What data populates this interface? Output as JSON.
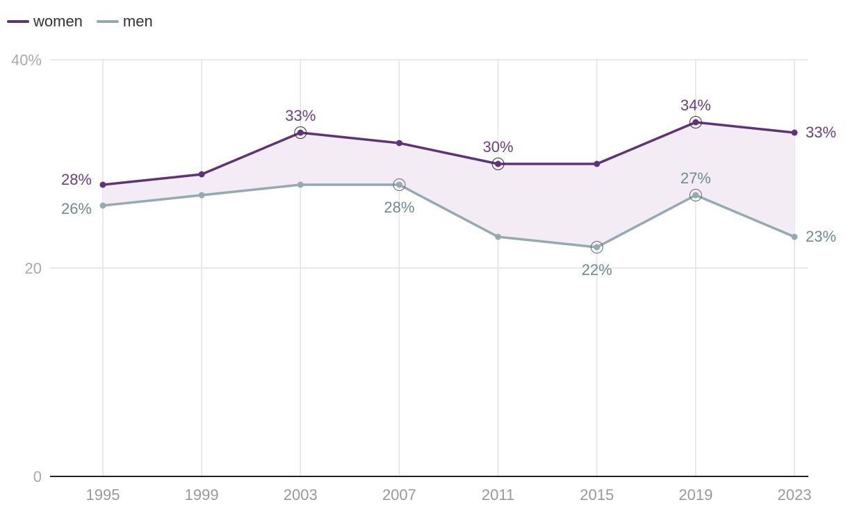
{
  "chart_data": {
    "type": "line",
    "x": [
      1995,
      1999,
      2003,
      2007,
      2011,
      2015,
      2019,
      2023
    ],
    "series": [
      {
        "name": "women",
        "color": "#5e3378",
        "values": [
          28,
          29,
          33,
          32,
          30,
          30,
          34,
          33
        ],
        "value_labels": [
          "28%",
          null,
          "33%",
          null,
          "30%",
          null,
          "34%",
          "33%"
        ]
      },
      {
        "name": "men",
        "color": "#93aab0",
        "values": [
          26,
          27,
          28,
          28,
          23,
          22,
          27,
          23
        ],
        "value_labels": [
          "26%",
          null,
          null,
          "28%",
          null,
          "22%",
          "27%",
          "23%"
        ]
      }
    ],
    "ylim": [
      0,
      40
    ],
    "yticks": [
      0,
      20,
      {
        "value": 40,
        "label": "40%"
      }
    ],
    "xticks": [
      1995,
      1999,
      2003,
      2007,
      2011,
      2015,
      2019,
      2023
    ],
    "grid": true,
    "legend": "top-left"
  }
}
